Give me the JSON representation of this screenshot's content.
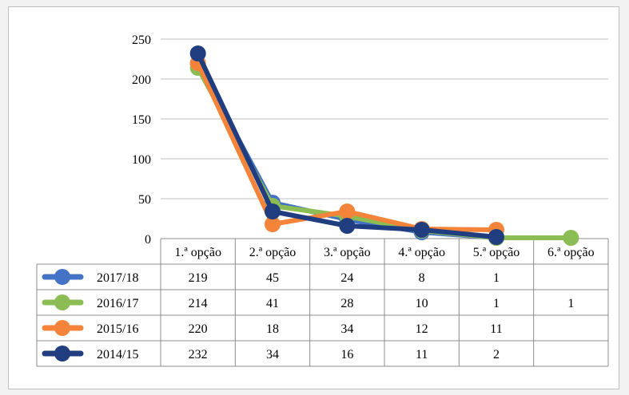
{
  "chart_data": {
    "type": "line",
    "title": "",
    "xlabel": "",
    "ylabel": "",
    "categories": [
      "1.ª opção",
      "2.ª opção",
      "3.ª opção",
      "4.ª opção",
      "5.ª opção",
      "6.ª opção"
    ],
    "ylim": [
      0,
      250
    ],
    "yticks": [
      "0",
      "50",
      "100",
      "150",
      "200",
      "250"
    ],
    "grid": true,
    "legend_placement": "data-table",
    "series": [
      {
        "name": "2017/18",
        "color": "#4472c4",
        "values": [
          219,
          45,
          24,
          8,
          1,
          null
        ]
      },
      {
        "name": "2016/17",
        "color": "#8cbd55",
        "values": [
          214,
          41,
          28,
          10,
          1,
          1
        ]
      },
      {
        "name": "2015/16",
        "color": "#f4843a",
        "values": [
          220,
          18,
          34,
          12,
          11,
          null
        ]
      },
      {
        "name": "2014/15",
        "color": "#1f3d7f",
        "values": [
          232,
          34,
          16,
          11,
          2,
          null
        ]
      }
    ]
  }
}
